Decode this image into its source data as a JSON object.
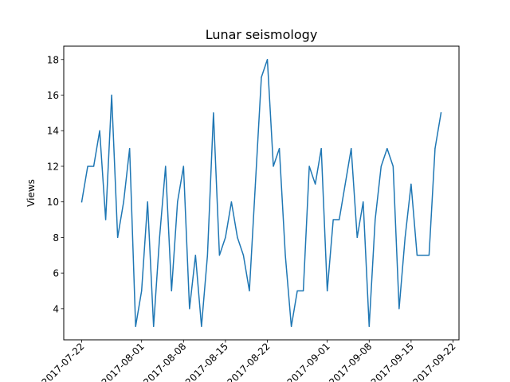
{
  "chart_data": {
    "type": "line",
    "title": "Lunar seismology",
    "xlabel": "",
    "ylabel": "Views",
    "grid": false,
    "colors": {
      "series": "#1f77b4",
      "axes": "#000000",
      "background": "#ffffff"
    },
    "ylim": [
      2.25,
      18.75
    ],
    "xlim": [
      "2017-07-19",
      "2017-09-23"
    ],
    "yticks": [
      4,
      6,
      8,
      10,
      12,
      14,
      16,
      18
    ],
    "ytick_labels": [
      "4",
      "6",
      "8",
      "10",
      "12",
      "14",
      "16",
      "18"
    ],
    "xticks": [
      "2017-07-22",
      "2017-08-01",
      "2017-08-08",
      "2017-08-15",
      "2017-08-22",
      "2017-09-01",
      "2017-09-08",
      "2017-09-15",
      "2017-09-22"
    ],
    "xtick_labels": [
      "2017-07-22",
      "2017-08-01",
      "2017-08-08",
      "2017-08-15",
      "2017-08-22",
      "2017-09-01",
      "2017-09-08",
      "2017-09-15",
      "2017-09-22"
    ],
    "x": [
      "2017-07-22",
      "2017-07-23",
      "2017-07-24",
      "2017-07-25",
      "2017-07-26",
      "2017-07-27",
      "2017-07-28",
      "2017-07-29",
      "2017-07-30",
      "2017-07-31",
      "2017-08-01",
      "2017-08-02",
      "2017-08-03",
      "2017-08-04",
      "2017-08-05",
      "2017-08-06",
      "2017-08-07",
      "2017-08-08",
      "2017-08-09",
      "2017-08-10",
      "2017-08-11",
      "2017-08-12",
      "2017-08-13",
      "2017-08-14",
      "2017-08-15",
      "2017-08-16",
      "2017-08-17",
      "2017-08-18",
      "2017-08-19",
      "2017-08-20",
      "2017-08-21",
      "2017-08-22",
      "2017-08-23",
      "2017-08-24",
      "2017-08-25",
      "2017-08-26",
      "2017-08-27",
      "2017-08-28",
      "2017-08-29",
      "2017-08-30",
      "2017-08-31",
      "2017-09-01",
      "2017-09-02",
      "2017-09-03",
      "2017-09-04",
      "2017-09-05",
      "2017-09-06",
      "2017-09-07",
      "2017-09-08",
      "2017-09-09",
      "2017-09-10",
      "2017-09-11",
      "2017-09-12",
      "2017-09-13",
      "2017-09-14",
      "2017-09-15",
      "2017-09-16",
      "2017-09-17",
      "2017-09-18",
      "2017-09-19",
      "2017-09-20"
    ],
    "series": [
      {
        "values": [
          10,
          12,
          12,
          14,
          9,
          16,
          8,
          10,
          13,
          3,
          5,
          10,
          3,
          8,
          12,
          5,
          10,
          12,
          4,
          7,
          3,
          7,
          15,
          7,
          8,
          10,
          8,
          7,
          5,
          11,
          17,
          18,
          12,
          13,
          7,
          3,
          5,
          5,
          12,
          11,
          13,
          5,
          9,
          9,
          11,
          13,
          8,
          10,
          3,
          9,
          12,
          13,
          12,
          4,
          8,
          11,
          7,
          7,
          7,
          13,
          15
        ]
      }
    ]
  }
}
